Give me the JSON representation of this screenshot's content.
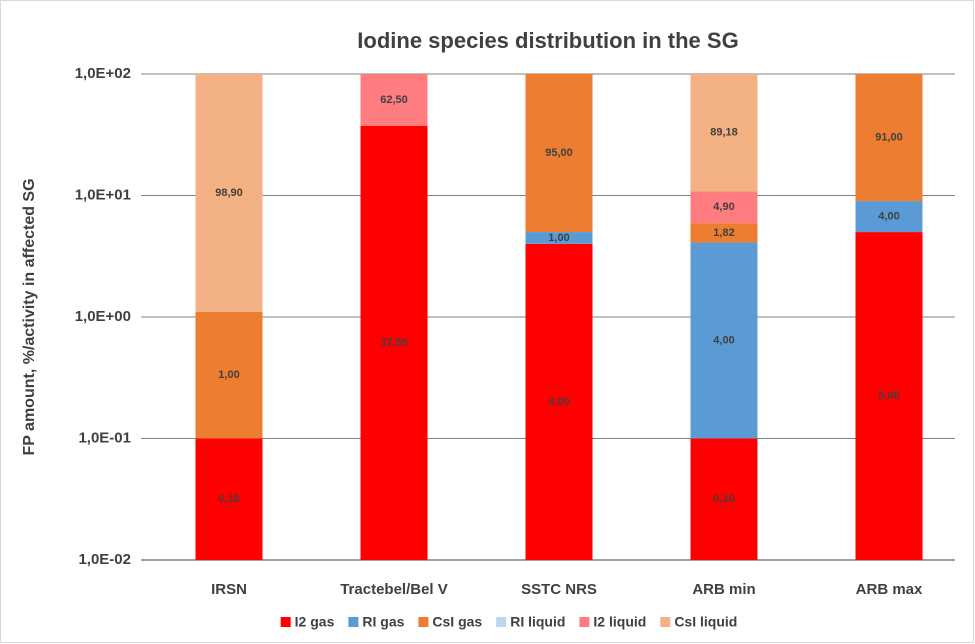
{
  "chart_data": {
    "type": "stacked_bar",
    "title": "Iodine species distribution in the SG",
    "y_label": "FP amount, %/activity in affected SG",
    "categories": [
      "IRSN",
      "Tractebel/Bel V",
      "SSTC NRS",
      "ARB min",
      "ARB max"
    ],
    "log_scale": true,
    "grid": true,
    "legend": "bottom",
    "ylim": [
      0.01,
      100
    ],
    "yticks": [
      {
        "value": 0.01,
        "label": "1,0E-02"
      },
      {
        "value": 0.1,
        "label": "1,0E-01"
      },
      {
        "value": 1,
        "label": "1,0E+00"
      },
      {
        "value": 10,
        "label": "1,0E+01"
      },
      {
        "value": 100,
        "label": "1,0E+02"
      }
    ],
    "series": [
      {
        "name": "I2 gas",
        "color": "#ff0000",
        "values": [
          0.1,
          37.5,
          4,
          0.1,
          5
        ],
        "value_labels": [
          "0,10",
          "37,50",
          "4,00",
          "0,10",
          "5,00"
        ]
      },
      {
        "name": "RI gas",
        "color": "#5b9bd5",
        "values": [
          null,
          null,
          1,
          4,
          4
        ],
        "value_labels": [
          null,
          null,
          "1,00",
          "4,00",
          "4,00"
        ]
      },
      {
        "name": "CsI gas",
        "color": "#ed7d31",
        "values": [
          1,
          null,
          95,
          1.82,
          91
        ],
        "value_labels": [
          "1,00",
          null,
          "95,00",
          "1,82",
          "91,00"
        ]
      },
      {
        "name": "RI liquid",
        "color": "#bdd7ee",
        "values": [
          null,
          null,
          null,
          null,
          null
        ],
        "value_labels": [
          null,
          null,
          null,
          null,
          null
        ]
      },
      {
        "name": "I2 liquid",
        "color": "#ff7c80",
        "values": [
          null,
          62.5,
          null,
          4.9,
          null
        ],
        "value_labels": [
          null,
          "62,50",
          null,
          "4,90",
          null
        ]
      },
      {
        "name": "CsI liquid",
        "color": "#f4b183",
        "values": [
          98.9,
          null,
          null,
          89.18,
          null
        ],
        "value_labels": [
          "98,90",
          null,
          null,
          "89,18",
          null
        ]
      }
    ]
  }
}
